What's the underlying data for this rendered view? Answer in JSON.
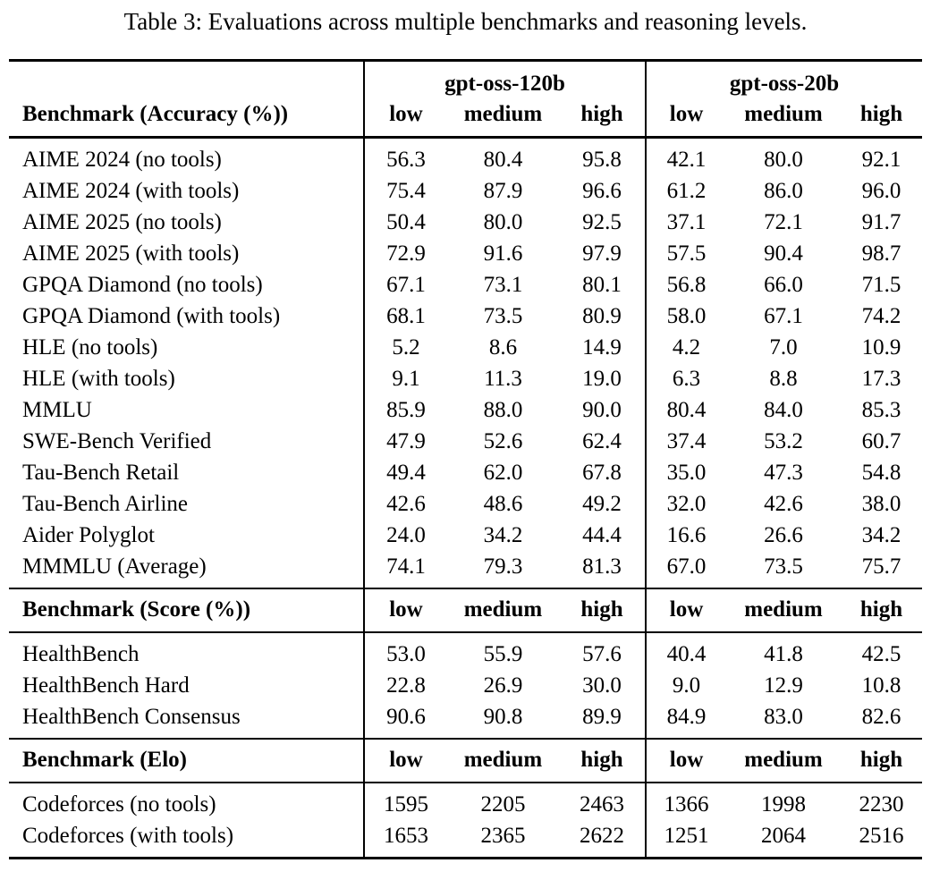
{
  "title": "Table 3: Evaluations across multiple benchmarks and reasoning levels.",
  "models": [
    "gpt-oss-120b",
    "gpt-oss-20b"
  ],
  "levels": [
    "low",
    "medium",
    "high"
  ],
  "sections": [
    {
      "header": "Benchmark (Accuracy (%))",
      "rows": [
        {
          "label": "AIME 2024 (no tools)",
          "values": [
            "56.3",
            "80.4",
            "95.8",
            "42.1",
            "80.0",
            "92.1"
          ]
        },
        {
          "label": "AIME 2024 (with tools)",
          "values": [
            "75.4",
            "87.9",
            "96.6",
            "61.2",
            "86.0",
            "96.0"
          ]
        },
        {
          "label": "AIME 2025 (no tools)",
          "values": [
            "50.4",
            "80.0",
            "92.5",
            "37.1",
            "72.1",
            "91.7"
          ]
        },
        {
          "label": "AIME 2025 (with tools)",
          "values": [
            "72.9",
            "91.6",
            "97.9",
            "57.5",
            "90.4",
            "98.7"
          ]
        },
        {
          "label": "GPQA Diamond (no tools)",
          "values": [
            "67.1",
            "73.1",
            "80.1",
            "56.8",
            "66.0",
            "71.5"
          ]
        },
        {
          "label": "GPQA Diamond (with tools)",
          "values": [
            "68.1",
            "73.5",
            "80.9",
            "58.0",
            "67.1",
            "74.2"
          ]
        },
        {
          "label": "HLE (no tools)",
          "values": [
            "5.2",
            "8.6",
            "14.9",
            "4.2",
            "7.0",
            "10.9"
          ]
        },
        {
          "label": "HLE (with tools)",
          "values": [
            "9.1",
            "11.3",
            "19.0",
            "6.3",
            "8.8",
            "17.3"
          ]
        },
        {
          "label": "MMLU",
          "values": [
            "85.9",
            "88.0",
            "90.0",
            "80.4",
            "84.0",
            "85.3"
          ]
        },
        {
          "label": "SWE-Bench Verified",
          "values": [
            "47.9",
            "52.6",
            "62.4",
            "37.4",
            "53.2",
            "60.7"
          ]
        },
        {
          "label": "Tau-Bench Retail",
          "values": [
            "49.4",
            "62.0",
            "67.8",
            "35.0",
            "47.3",
            "54.8"
          ]
        },
        {
          "label": "Tau-Bench Airline",
          "values": [
            "42.6",
            "48.6",
            "49.2",
            "32.0",
            "42.6",
            "38.0"
          ]
        },
        {
          "label": "Aider Polyglot",
          "values": [
            "24.0",
            "34.2",
            "44.4",
            "16.6",
            "26.6",
            "34.2"
          ]
        },
        {
          "label": "MMMLU (Average)",
          "values": [
            "74.1",
            "79.3",
            "81.3",
            "67.0",
            "73.5",
            "75.7"
          ]
        }
      ]
    },
    {
      "header": "Benchmark (Score (%))",
      "rows": [
        {
          "label": "HealthBench",
          "values": [
            "53.0",
            "55.9",
            "57.6",
            "40.4",
            "41.8",
            "42.5"
          ]
        },
        {
          "label": "HealthBench Hard",
          "values": [
            "22.8",
            "26.9",
            "30.0",
            "9.0",
            "12.9",
            "10.8"
          ]
        },
        {
          "label": "HealthBench Consensus",
          "values": [
            "90.6",
            "90.8",
            "89.9",
            "84.9",
            "83.0",
            "82.6"
          ]
        }
      ]
    },
    {
      "header": "Benchmark (Elo)",
      "rows": [
        {
          "label": "Codeforces (no tools)",
          "values": [
            "1595",
            "2205",
            "2463",
            "1366",
            "1998",
            "2230"
          ]
        },
        {
          "label": "Codeforces (with tools)",
          "values": [
            "1653",
            "2365",
            "2622",
            "1251",
            "2064",
            "2516"
          ]
        }
      ]
    }
  ]
}
